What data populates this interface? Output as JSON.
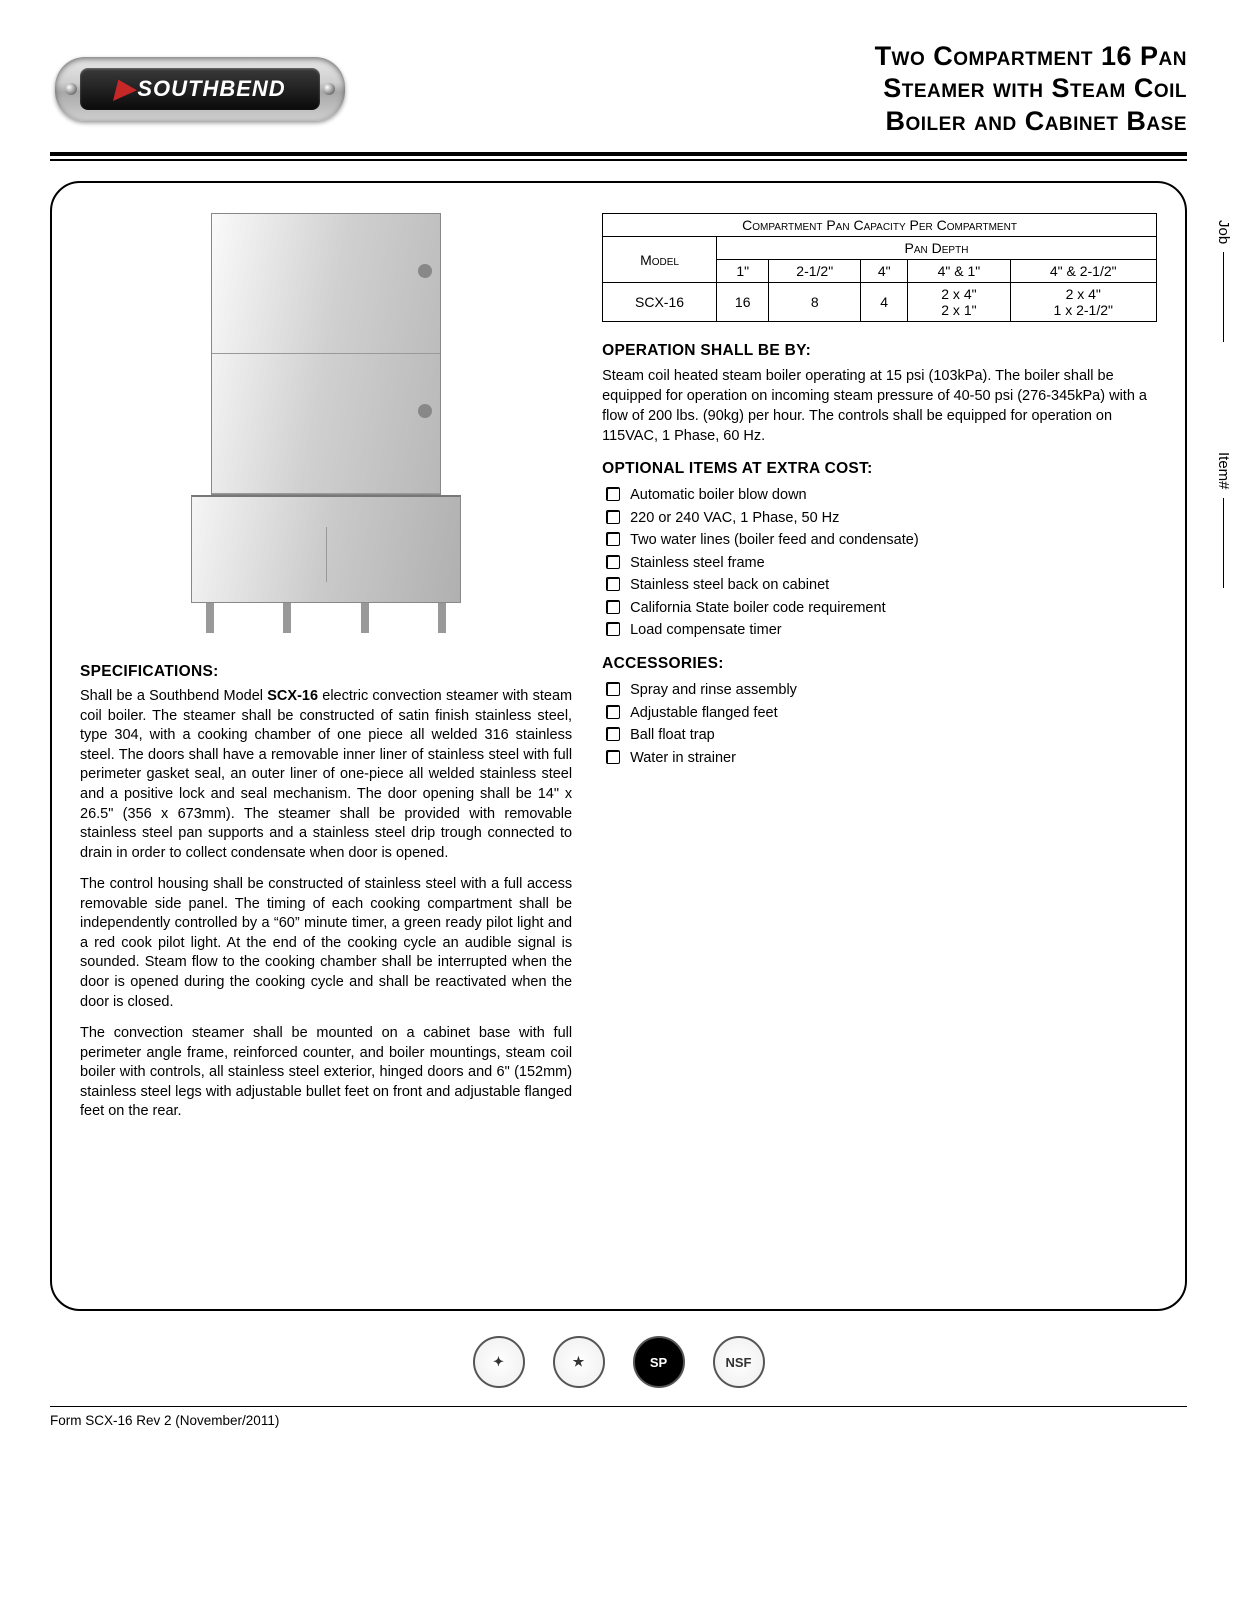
{
  "logo": {
    "text": "SOUTHBEND"
  },
  "title": {
    "line1": "Two Compartment 16 Pan",
    "line2": "Steamer with Steam Coil",
    "line3": "Boiler and Cabinet Base"
  },
  "sidebar": {
    "job": "Job",
    "item": "Item#"
  },
  "specs": {
    "heading": "SPECIFICATIONS:",
    "p1a": "Shall be a Southbend Model ",
    "p1_model": "SCX-16",
    "p1b": " electric convection steamer with steam coil boiler. The steamer shall be constructed of satin finish stainless steel, type 304, with a cooking chamber of one piece all welded 316 stainless steel. The doors shall have a removable inner liner of stainless steel with full perimeter gasket seal, an outer liner of one-piece all welded stainless steel and a positive lock and seal mechanism. The door opening shall be 14\" x 26.5\" (356 x 673mm). The steamer shall be provided with removable stainless steel pan supports and a stainless steel drip trough connected to drain in order to collect condensate when door is opened.",
    "p2": "The control housing shall be constructed of stainless steel with a full access removable side panel. The timing of each cooking compartment shall be independently controlled by a “60” minute timer, a green ready pilot light and a red cook pilot light. At the end of the cooking cycle an audible signal is sounded. Steam flow to the cooking chamber shall be interrupted when the door is opened during the cooking cycle and shall be reactivated when the door is closed.",
    "p3": "The convection steamer shall be mounted on a cabinet base with full perimeter angle frame, reinforced counter, and boiler mountings, steam coil boiler with controls, all stainless steel exterior, hinged doors and 6\" (152mm) stainless steel legs with adjustable bullet feet on front and adjustable flanged feet on the rear."
  },
  "capacity_table": {
    "title": "Compartment Pan Capacity Per Compartment",
    "model_header": "Model",
    "depth_header": "Pan Depth",
    "depth_cols": [
      "1\"",
      "2-1/2\"",
      "4\"",
      "4\" & 1\"",
      "4\" & 2-1/2\""
    ],
    "row_model": "SCX-16",
    "row_vals": [
      "16",
      "8",
      "4"
    ],
    "row_combo1_a": "2 x 4\"",
    "row_combo1_b": "2 x 1\"",
    "row_combo2_a": "2 x 4\"",
    "row_combo2_b": "1 x 2-1/2\""
  },
  "operation": {
    "heading": "OPERATION SHALL BE BY:",
    "body": "Steam coil heated steam boiler operating at 15 psi (103kPa). The boiler shall be equipped for operation on incoming steam pressure of 40-50 psi (276-345kPa) with a flow of 200 lbs. (90kg) per hour. The controls shall be equipped for operation on 115VAC, 1 Phase, 60 Hz."
  },
  "optional": {
    "heading": "OPTIONAL ITEMS AT EXTRA COST:",
    "items": [
      "Automatic boiler blow down",
      "220 or 240 VAC, 1 Phase, 50 Hz",
      "Two water lines (boiler feed and condensate)",
      "Stainless steel frame",
      "Stainless steel back on cabinet",
      "California State boiler code requirement",
      "Load compensate timer"
    ]
  },
  "accessories": {
    "heading": "ACCESSORIES:",
    "items": [
      "Spray and rinse assembly",
      "Adjustable flanged feet",
      "Ball float trap",
      "Water in strainer"
    ]
  },
  "certs": [
    "✦",
    "★",
    "SP",
    "NSF"
  ],
  "footer": "Form SCX-16 Rev 2 (November/2011)"
}
